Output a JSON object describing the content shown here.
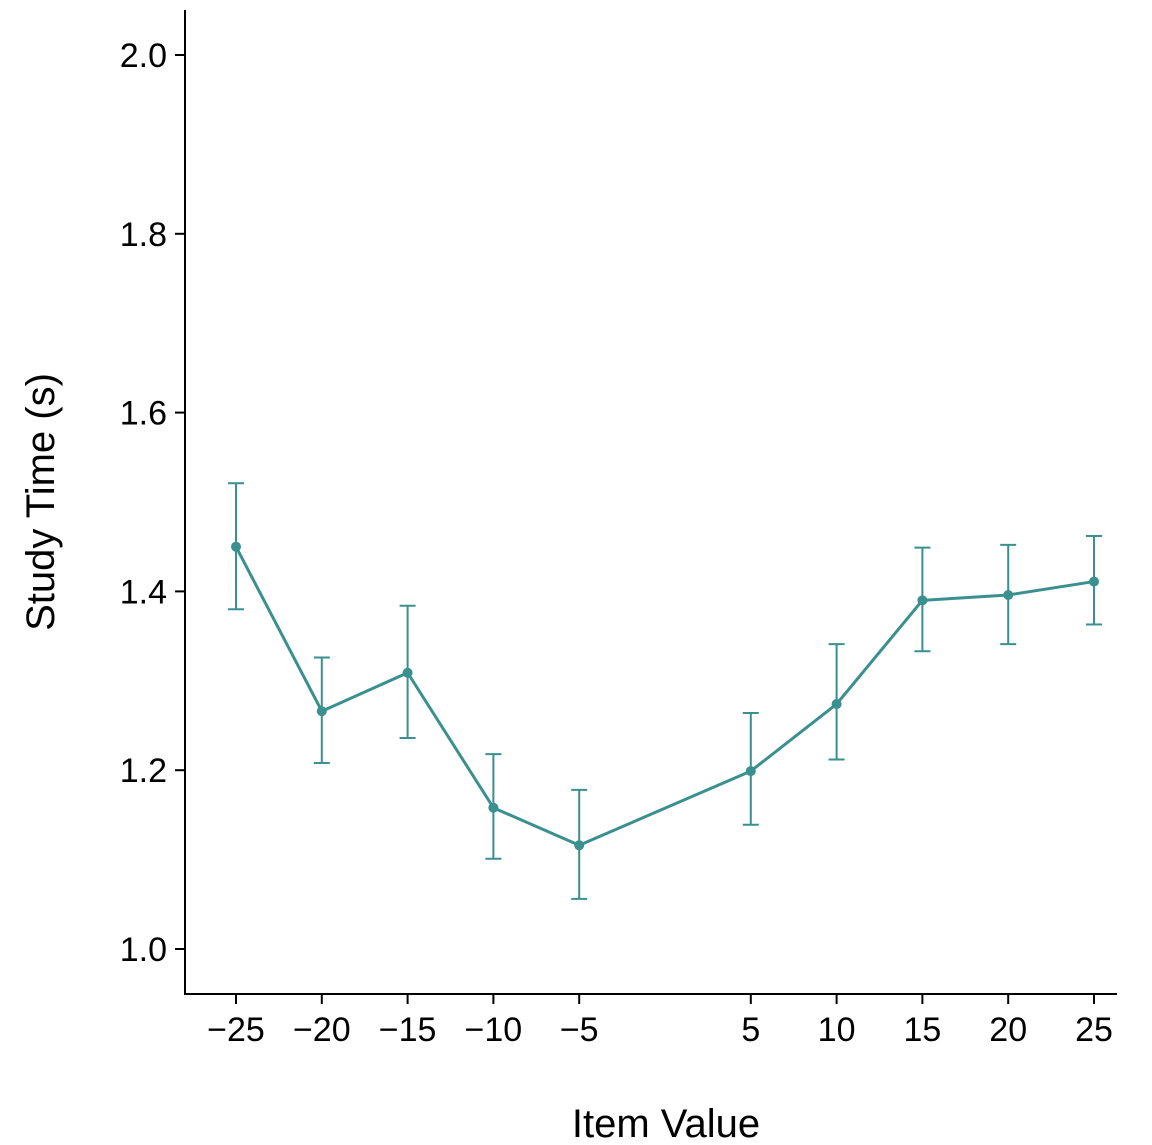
{
  "chart_data": {
    "type": "line",
    "title": "",
    "xlabel": "Item Value",
    "ylabel": "Study Time (s)",
    "x": [
      -25,
      -20,
      -15,
      -10,
      -5,
      5,
      10,
      15,
      20,
      25
    ],
    "x_tick_labels": [
      "−25",
      "−20",
      "−15",
      "−10",
      "−5",
      "5",
      "10",
      "15",
      "20",
      "25"
    ],
    "y_ticks": [
      1.0,
      1.2,
      1.4,
      1.6,
      1.8,
      2.0
    ],
    "y_tick_labels": [
      "1.0",
      "1.2",
      "1.4",
      "1.6",
      "1.8",
      "2.0"
    ],
    "ylim": [
      0.95,
      2.05
    ],
    "xlim": [
      -28,
      26.3
    ],
    "grid": false,
    "legend": "none",
    "series": [
      {
        "color": "#3a8f8f",
        "values": [
          1.45,
          1.266,
          1.309,
          1.158,
          1.116,
          1.199,
          1.274,
          1.39,
          1.396,
          1.411
        ],
        "error_lower": [
          1.38,
          1.208,
          1.236,
          1.101,
          1.056,
          1.139,
          1.212,
          1.333,
          1.341,
          1.363
        ],
        "error_upper": [
          1.521,
          1.326,
          1.384,
          1.218,
          1.178,
          1.264,
          1.341,
          1.449,
          1.452,
          1.462
        ]
      }
    ]
  }
}
